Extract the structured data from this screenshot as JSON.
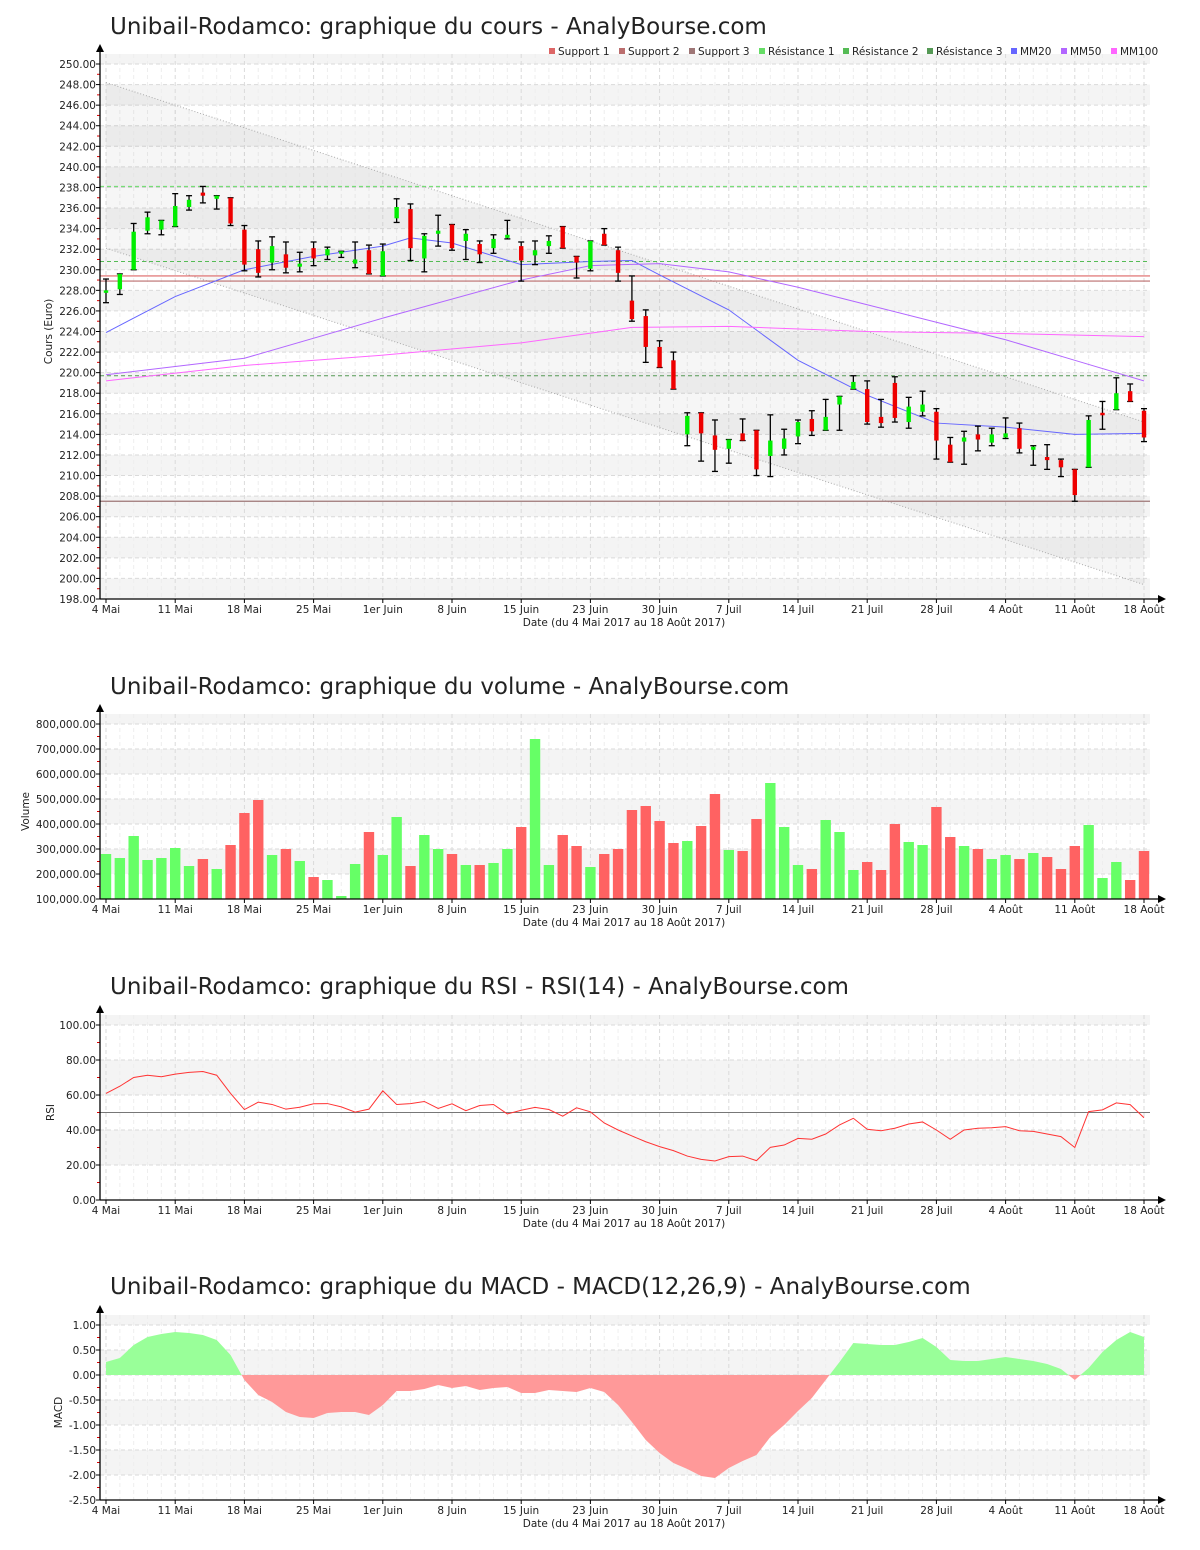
{
  "titles": [
    "Unibail-Rodamco: graphique du cours - AnalyBourse.com",
    "Unibail-Rodamco: graphique du volume - AnalyBourse.com",
    "Unibail-Rodamco: graphique du RSI - RSI(14) - AnalyBourse.com",
    "Unibail-Rodamco: graphique du MACD - MACD(12,26,9) - AnalyBourse.com"
  ],
  "x_axis": {
    "label": "Date (du 4 Mai 2017 au 18 Août 2017)",
    "days": 76,
    "tick_every": 5,
    "labels": [
      "4 Mai",
      "11 Mai",
      "18 Mai",
      "25 Mai",
      "1er Juin",
      "8 Juin",
      "15 Juin",
      "23 Juin",
      "30 Juin",
      "7 Juil",
      "14 Juil",
      "21 Juil",
      "28 Juil",
      "4 Août",
      "11 Août",
      "18 Août"
    ]
  },
  "legend": [
    {
      "label": "Support 1",
      "color": "#dd6666"
    },
    {
      "label": "Support 2",
      "color": "#bb6e6e"
    },
    {
      "label": "Support 3",
      "color": "#9e7676"
    },
    {
      "label": "Résistance 1",
      "color": "#66dd66"
    },
    {
      "label": "Résistance 2",
      "color": "#55bb55"
    },
    {
      "label": "Résistance 3",
      "color": "#559955"
    },
    {
      "label": "MM20",
      "color": "#6666ff"
    },
    {
      "label": "MM50",
      "color": "#b266ff"
    },
    {
      "label": "MM100",
      "color": "#ff66ff"
    }
  ],
  "chart_data": [
    {
      "type": "candlestick",
      "title": "Unibail-Rodamco: graphique du cours - AnalyBourse.com",
      "ylabel": "Cours (Euro)",
      "ylim": [
        198,
        250
      ],
      "yticks": [
        "198.00",
        "200.00",
        "202.00",
        "204.00",
        "206.00",
        "208.00",
        "210.00",
        "212.00",
        "214.00",
        "216.00",
        "218.00",
        "220.00",
        "222.00",
        "224.00",
        "226.00",
        "228.00",
        "230.00",
        "232.00",
        "234.00",
        "236.00",
        "238.00",
        "240.00",
        "242.00",
        "244.00",
        "246.00",
        "248.00",
        "250.00"
      ],
      "ohlc": [
        [
          227.8,
          229.1,
          226.8,
          228.0
        ],
        [
          228.1,
          229.6,
          227.6,
          229.6
        ],
        [
          230.0,
          234.5,
          230.0,
          233.7
        ],
        [
          233.8,
          235.6,
          233.5,
          235.1
        ],
        [
          233.9,
          234.8,
          233.4,
          234.8
        ],
        [
          234.2,
          237.4,
          234.2,
          236.2
        ],
        [
          236.1,
          237.2,
          235.8,
          236.8
        ],
        [
          237.5,
          238.1,
          236.5,
          237.2
        ],
        [
          236.9,
          237.2,
          235.9,
          237.2
        ],
        [
          237.0,
          237.0,
          234.3,
          234.5
        ],
        [
          233.9,
          234.3,
          229.9,
          230.5
        ],
        [
          232.0,
          232.8,
          229.3,
          229.7
        ],
        [
          230.7,
          233.2,
          230.0,
          232.3
        ],
        [
          231.5,
          232.7,
          229.7,
          230.2
        ],
        [
          230.3,
          231.7,
          229.8,
          230.6
        ],
        [
          232.1,
          232.7,
          230.4,
          231.1
        ],
        [
          231.4,
          232.2,
          231.0,
          232.0
        ],
        [
          231.6,
          231.8,
          231.2,
          231.8
        ],
        [
          230.6,
          232.7,
          230.2,
          231.0
        ],
        [
          231.9,
          232.4,
          229.6,
          229.6
        ],
        [
          229.4,
          232.5,
          229.4,
          231.8
        ],
        [
          235.0,
          236.9,
          234.6,
          236.1
        ],
        [
          235.9,
          236.4,
          230.9,
          232.1
        ],
        [
          231.1,
          233.5,
          229.8,
          233.3
        ],
        [
          233.5,
          235.3,
          232.3,
          233.8
        ],
        [
          234.4,
          234.4,
          231.9,
          232.1
        ],
        [
          232.8,
          233.9,
          231.0,
          233.5
        ],
        [
          232.5,
          232.8,
          230.7,
          231.5
        ],
        [
          232.1,
          233.4,
          231.6,
          233.0
        ],
        [
          233.1,
          234.8,
          233.0,
          233.4
        ],
        [
          232.3,
          232.7,
          228.9,
          230.9
        ],
        [
          231.4,
          232.8,
          230.5,
          231.9
        ],
        [
          232.3,
          233.3,
          231.6,
          232.8
        ],
        [
          234.2,
          234.2,
          232.1,
          232.1
        ],
        [
          231.3,
          231.3,
          229.2,
          230.7
        ],
        [
          230.1,
          232.8,
          229.9,
          232.8
        ],
        [
          233.5,
          234.0,
          232.4,
          232.4
        ],
        [
          231.9,
          232.2,
          228.9,
          229.7
        ],
        [
          227.0,
          229.4,
          225.0,
          225.2
        ],
        [
          225.5,
          226.1,
          221.0,
          222.5
        ],
        [
          222.5,
          223.1,
          220.5,
          220.5
        ],
        [
          221.2,
          222.0,
          218.4,
          218.4
        ],
        [
          214.0,
          216.1,
          212.9,
          215.8
        ],
        [
          216.1,
          216.1,
          211.4,
          214.1
        ],
        [
          213.9,
          215.4,
          210.4,
          212.5
        ],
        [
          212.6,
          213.5,
          211.2,
          213.5
        ],
        [
          214.1,
          215.5,
          213.4,
          213.4
        ],
        [
          214.4,
          214.4,
          210.0,
          210.6
        ],
        [
          211.9,
          215.9,
          209.9,
          213.4
        ],
        [
          212.6,
          214.5,
          212.0,
          213.6
        ],
        [
          213.8,
          215.4,
          213.1,
          215.2
        ],
        [
          215.5,
          216.3,
          213.9,
          214.3
        ],
        [
          214.4,
          217.4,
          214.4,
          215.7
        ],
        [
          216.9,
          217.7,
          214.4,
          217.7
        ],
        [
          218.4,
          219.7,
          218.4,
          219.1
        ],
        [
          218.4,
          219.2,
          215.0,
          215.2
        ],
        [
          215.7,
          217.4,
          214.7,
          215.1
        ],
        [
          219.0,
          219.6,
          215.2,
          215.6
        ],
        [
          215.2,
          217.6,
          214.6,
          216.7
        ],
        [
          216.2,
          218.2,
          215.8,
          216.9
        ],
        [
          216.2,
          216.5,
          211.6,
          213.4
        ],
        [
          213.0,
          213.7,
          211.3,
          211.3
        ],
        [
          213.3,
          214.3,
          211.1,
          213.7
        ],
        [
          214.0,
          214.8,
          212.4,
          213.5
        ],
        [
          213.2,
          214.6,
          212.9,
          214.0
        ],
        [
          213.7,
          215.6,
          213.6,
          214.1
        ],
        [
          214.6,
          215.1,
          212.2,
          212.6
        ],
        [
          212.5,
          212.9,
          211.0,
          212.8
        ],
        [
          211.8,
          213.0,
          210.6,
          211.5
        ],
        [
          211.5,
          211.6,
          209.9,
          210.8
        ],
        [
          210.6,
          210.6,
          207.5,
          208.1
        ],
        [
          210.8,
          215.8,
          210.8,
          215.4
        ],
        [
          216.1,
          217.2,
          214.5,
          215.9
        ],
        [
          216.4,
          219.5,
          216.4,
          218.0
        ],
        [
          218.2,
          218.9,
          217.2,
          217.2
        ],
        [
          216.3,
          216.5,
          213.3,
          213.7
        ]
      ],
      "levels": {
        "support": [
          229.4,
          228.9,
          207.5
        ],
        "resistance": [
          238.1,
          230.8,
          219.7
        ]
      },
      "trend_channel": {
        "upper": [
          248.2,
          215.2
        ],
        "lower": [
          232.1,
          199.4
        ]
      },
      "moving_averages": [
        {
          "name": "MM20",
          "points": [
            [
              0,
              223.9
            ],
            [
              5,
              227.4
            ],
            [
              10,
              230.0
            ],
            [
              15,
              231.3
            ],
            [
              20,
              232.3
            ],
            [
              22,
              233.1
            ],
            [
              25,
              232.6
            ],
            [
              30,
              230.5
            ],
            [
              35,
              230.8
            ],
            [
              38,
              230.9
            ],
            [
              40,
              229.5
            ],
            [
              45,
              226.1
            ],
            [
              50,
              221.2
            ],
            [
              55,
              217.8
            ],
            [
              60,
              215.1
            ],
            [
              65,
              214.7
            ],
            [
              70,
              214.0
            ],
            [
              75,
              214.1
            ]
          ]
        },
        {
          "name": "MM50",
          "points": [
            [
              0,
              219.8
            ],
            [
              10,
              221.4
            ],
            [
              20,
              225.3
            ],
            [
              30,
              229.0
            ],
            [
              35,
              230.4
            ],
            [
              40,
              230.6
            ],
            [
              45,
              229.8
            ],
            [
              50,
              228.3
            ],
            [
              55,
              226.6
            ],
            [
              60,
              224.9
            ],
            [
              65,
              223.2
            ],
            [
              70,
              221.2
            ],
            [
              75,
              219.2
            ]
          ]
        },
        {
          "name": "MM100",
          "points": [
            [
              0,
              219.2
            ],
            [
              10,
              220.7
            ],
            [
              20,
              221.7
            ],
            [
              30,
              222.9
            ],
            [
              38,
              224.4
            ],
            [
              45,
              224.5
            ],
            [
              55,
              224.0
            ],
            [
              65,
              223.8
            ],
            [
              75,
              223.5
            ]
          ]
        }
      ]
    },
    {
      "type": "bar",
      "title": "Unibail-Rodamco: graphique du volume - AnalyBourse.com",
      "ylabel": "Volume",
      "ylim": [
        100000,
        800000
      ],
      "yticks": [
        "100,000.00",
        "200,000.00",
        "300,000.00",
        "400,000.00",
        "500,000.00",
        "600,000.00",
        "700,000.00",
        "800,000.00"
      ],
      "values": [
        280000,
        264000,
        352000,
        256000,
        264000,
        304000,
        232000,
        260000,
        220000,
        316000,
        444000,
        496000,
        276000,
        300000,
        252000,
        188000,
        176000,
        112000,
        240000,
        368000,
        276000,
        428000,
        232000,
        356000,
        300000,
        280000,
        236000,
        236000,
        244000,
        300000,
        388000,
        740000,
        236000,
        356000,
        312000,
        228000,
        280000,
        300000,
        456000,
        472000,
        412000,
        324000,
        332000,
        392000,
        520000,
        296000,
        292000,
        420000,
        564000,
        388000,
        236000,
        220000,
        416000,
        368000,
        216000,
        248000,
        216000,
        400000,
        328000,
        316000,
        468000,
        348000,
        312000,
        300000,
        260000,
        276000,
        260000,
        284000,
        268000,
        220000,
        312000,
        396000,
        184000,
        248000,
        176000,
        292000
      ],
      "direction": "GGGGGGGRGRRRGRGRGGGRGGRGGRGRGGRGGRRGRRRRRRGRRGRRGGGRGGGRRRGGRRGRGGRGRRRGGGRR",
      "colors": {
        "up": "#66ff66",
        "down": "#ff6262"
      }
    },
    {
      "type": "line",
      "title": "Unibail-Rodamco: graphique du RSI - RSI(14) - AnalyBourse.com",
      "ylabel": "RSI",
      "ylim": [
        0,
        100
      ],
      "yticks": [
        "0.00",
        "20.00",
        "40.00",
        "60.00",
        "80.00",
        "100.00"
      ],
      "reference_line": 50,
      "values": [
        60.9,
        65.0,
        70.0,
        71.3,
        70.4,
        71.9,
        72.9,
        73.4,
        71.3,
        60.9,
        51.7,
        55.9,
        54.6,
        51.9,
        53.0,
        55.0,
        55.1,
        53.2,
        50.2,
        51.9,
        62.4,
        54.6,
        55.1,
        56.3,
        52.3,
        55.0,
        51.0,
        54.0,
        54.6,
        49.2,
        51.3,
        52.9,
        51.7,
        47.9,
        52.7,
        50.4,
        44.0,
        40.0,
        36.6,
        33.3,
        30.5,
        28.2,
        25.1,
        23.2,
        22.3,
        24.8,
        25.1,
        22.5,
        30.1,
        31.4,
        35.2,
        34.7,
        37.7,
        42.9,
        46.7,
        40.4,
        39.6,
        41.0,
        43.4,
        44.6,
        40.0,
        34.7,
        40.0,
        41.0,
        41.3,
        41.9,
        39.6,
        39.2,
        37.7,
        36.2,
        30.0,
        50.5,
        51.5,
        55.5,
        54.5,
        47.0
      ],
      "color": "#ff3333"
    },
    {
      "type": "area",
      "title": "Unibail-Rodamco: graphique du MACD - MACD(12,26,9) - AnalyBourse.com",
      "ylabel": "MACD",
      "ylim": [
        -2.5,
        1.0
      ],
      "yticks": [
        "-2.50",
        "-2.00",
        "-1.50",
        "-1.00",
        "-0.50",
        "0.00",
        "0.50",
        "1.00"
      ],
      "values": [
        0.26,
        0.34,
        0.6,
        0.76,
        0.82,
        0.86,
        0.84,
        0.8,
        0.7,
        0.4,
        -0.1,
        -0.4,
        -0.54,
        -0.74,
        -0.84,
        -0.86,
        -0.76,
        -0.74,
        -0.74,
        -0.8,
        -0.6,
        -0.32,
        -0.32,
        -0.28,
        -0.2,
        -0.26,
        -0.22,
        -0.3,
        -0.26,
        -0.24,
        -0.36,
        -0.36,
        -0.3,
        -0.32,
        -0.34,
        -0.26,
        -0.34,
        -0.6,
        -0.94,
        -1.3,
        -1.56,
        -1.76,
        -1.88,
        -2.02,
        -2.06,
        -1.86,
        -1.72,
        -1.6,
        -1.24,
        -1.0,
        -0.72,
        -0.46,
        -0.1,
        0.26,
        0.64,
        0.62,
        0.6,
        0.6,
        0.66,
        0.74,
        0.56,
        0.3,
        0.28,
        0.28,
        0.32,
        0.36,
        0.32,
        0.28,
        0.22,
        0.12,
        -0.1,
        0.14,
        0.46,
        0.7,
        0.86,
        0.76
      ],
      "colors": {
        "positive": "#99ff99",
        "negative": "#ff9999"
      }
    }
  ]
}
